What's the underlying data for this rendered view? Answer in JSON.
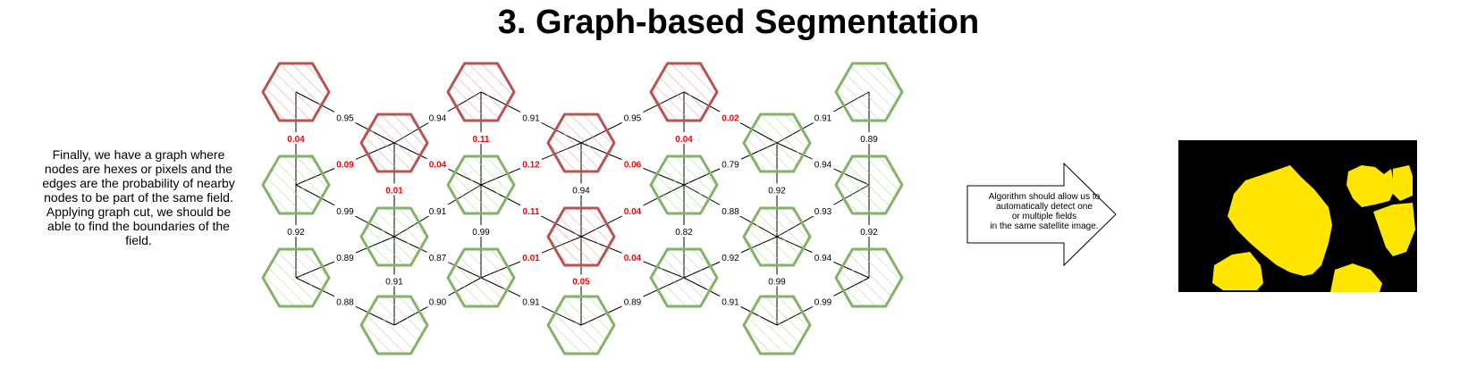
{
  "title": "3. Graph-based Segmentation",
  "description": "Finally, we have a graph where nodes are hexes or pixels and the edges are the probability of nearby nodes to be part of the same field. Applying graph cut, we should be able to find the boundaries of the field.",
  "callout": {
    "line1": "Algorithm should allow us to",
    "line2": "automatically detect one",
    "line3": "or multiple fields",
    "line4": "in the same satellite image."
  },
  "colors": {
    "boundary": "#b85450",
    "field": "#82b366",
    "low_prob": "#ff0000",
    "segment": "#ffe600",
    "background": "#000000"
  },
  "graph": {
    "nodes": [
      {
        "id": "n0",
        "col": 0,
        "row": 0,
        "cls": "boundary"
      },
      {
        "id": "n1",
        "col": 0,
        "row": 1,
        "cls": "field"
      },
      {
        "id": "n2",
        "col": 0,
        "row": 2,
        "cls": "field"
      },
      {
        "id": "n3",
        "col": 1,
        "row": 0,
        "cls": "boundary"
      },
      {
        "id": "n4",
        "col": 1,
        "row": 1,
        "cls": "field"
      },
      {
        "id": "n5",
        "col": 1,
        "row": 2,
        "cls": "field"
      },
      {
        "id": "n6",
        "col": 2,
        "row": 0,
        "cls": "boundary"
      },
      {
        "id": "n7",
        "col": 2,
        "row": 1,
        "cls": "field"
      },
      {
        "id": "n8",
        "col": 2,
        "row": 2,
        "cls": "field"
      },
      {
        "id": "n9",
        "col": 3,
        "row": 0,
        "cls": "boundary"
      },
      {
        "id": "n10",
        "col": 3,
        "row": 1,
        "cls": "boundary"
      },
      {
        "id": "n11",
        "col": 3,
        "row": 2,
        "cls": "field"
      },
      {
        "id": "n12",
        "col": 4,
        "row": 0,
        "cls": "boundary"
      },
      {
        "id": "n13",
        "col": 4,
        "row": 1,
        "cls": "field"
      },
      {
        "id": "n14",
        "col": 4,
        "row": 2,
        "cls": "field"
      },
      {
        "id": "n15",
        "col": 5,
        "row": 0,
        "cls": "field"
      },
      {
        "id": "n16",
        "col": 5,
        "row": 1,
        "cls": "field"
      },
      {
        "id": "n17",
        "col": 5,
        "row": 2,
        "cls": "field"
      },
      {
        "id": "n18",
        "col": 6,
        "row": 0,
        "cls": "field"
      },
      {
        "id": "n19",
        "col": 6,
        "row": 1,
        "cls": "field"
      },
      {
        "id": "n20",
        "col": 6,
        "row": 2,
        "cls": "field"
      }
    ],
    "edges": [
      {
        "a": "n0",
        "b": "n1",
        "label": "0.04",
        "low": true
      },
      {
        "a": "n1",
        "b": "n2",
        "label": "0.92",
        "low": false
      },
      {
        "a": "n3",
        "b": "n4",
        "label": "0.01",
        "low": true
      },
      {
        "a": "n4",
        "b": "n5",
        "label": "0.91",
        "low": false
      },
      {
        "a": "n6",
        "b": "n7",
        "label": "0.11",
        "low": true
      },
      {
        "a": "n7",
        "b": "n8",
        "label": "0.99",
        "low": false
      },
      {
        "a": "n9",
        "b": "n10",
        "label": "0.94",
        "low": false
      },
      {
        "a": "n10",
        "b": "n11",
        "label": "0.05",
        "low": true
      },
      {
        "a": "n12",
        "b": "n13",
        "label": "0.04",
        "low": true
      },
      {
        "a": "n13",
        "b": "n14",
        "label": "0.82",
        "low": false
      },
      {
        "a": "n15",
        "b": "n16",
        "label": "0.92",
        "low": false
      },
      {
        "a": "n16",
        "b": "n17",
        "label": "0.99",
        "low": false
      },
      {
        "a": "n18",
        "b": "n19",
        "label": "0.89",
        "low": false
      },
      {
        "a": "n19",
        "b": "n20",
        "label": "0.92",
        "low": false
      },
      {
        "a": "n0",
        "b": "n3",
        "label": "0.95",
        "low": false
      },
      {
        "a": "n1",
        "b": "n3",
        "label": "0.09",
        "low": true
      },
      {
        "a": "n1",
        "b": "n4",
        "label": "0.99",
        "low": false
      },
      {
        "a": "n2",
        "b": "n4",
        "label": "0.89",
        "low": false
      },
      {
        "a": "n2",
        "b": "n5",
        "label": "0.88",
        "low": false
      },
      {
        "a": "n6",
        "b": "n3",
        "label": "0.94",
        "low": false
      },
      {
        "a": "n7",
        "b": "n3",
        "label": "0.04",
        "low": true
      },
      {
        "a": "n7",
        "b": "n4",
        "label": "0.91",
        "low": false
      },
      {
        "a": "n8",
        "b": "n4",
        "label": "0.87",
        "low": false
      },
      {
        "a": "n8",
        "b": "n5",
        "label": "0.90",
        "low": false
      },
      {
        "a": "n6",
        "b": "n9",
        "label": "0.91",
        "low": false
      },
      {
        "a": "n7",
        "b": "n9",
        "label": "0.12",
        "low": true
      },
      {
        "a": "n7",
        "b": "n10",
        "label": "0.11",
        "low": true
      },
      {
        "a": "n8",
        "b": "n10",
        "label": "0.01",
        "low": true
      },
      {
        "a": "n8",
        "b": "n11",
        "label": "0.91",
        "low": false
      },
      {
        "a": "n12",
        "b": "n9",
        "label": "0.95",
        "low": false
      },
      {
        "a": "n13",
        "b": "n9",
        "label": "0.06",
        "low": true
      },
      {
        "a": "n13",
        "b": "n10",
        "label": "0.04",
        "low": true
      },
      {
        "a": "n14",
        "b": "n10",
        "label": "0.04",
        "low": true
      },
      {
        "a": "n14",
        "b": "n11",
        "label": "0.89",
        "low": false
      },
      {
        "a": "n12",
        "b": "n15",
        "label": "0.02",
        "low": true
      },
      {
        "a": "n13",
        "b": "n15",
        "label": "0.79",
        "low": false
      },
      {
        "a": "n13",
        "b": "n16",
        "label": "0.88",
        "low": false
      },
      {
        "a": "n14",
        "b": "n16",
        "label": "0.92",
        "low": false
      },
      {
        "a": "n14",
        "b": "n17",
        "label": "0.91",
        "low": false
      },
      {
        "a": "n18",
        "b": "n15",
        "label": "0.91",
        "low": false
      },
      {
        "a": "n19",
        "b": "n15",
        "label": "0.94",
        "low": false
      },
      {
        "a": "n19",
        "b": "n16",
        "label": "0.93",
        "low": false
      },
      {
        "a": "n20",
        "b": "n16",
        "label": "0.94",
        "low": false
      },
      {
        "a": "n20",
        "b": "n17",
        "label": "0.99",
        "low": false
      }
    ]
  }
}
